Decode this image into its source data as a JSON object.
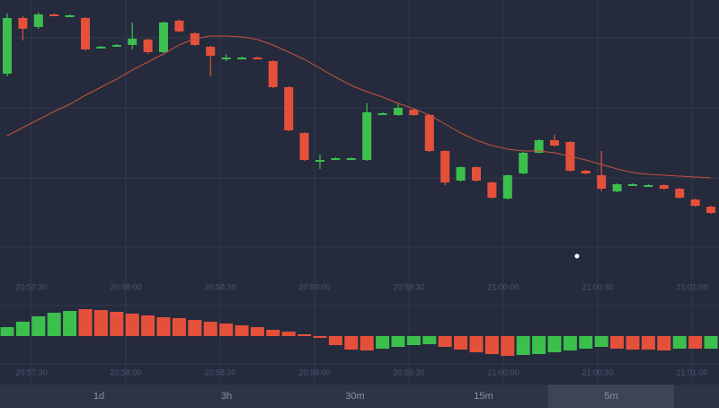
{
  "chart_data": [
    {
      "type": "candlestick",
      "time_labels": [
        "20:57:30",
        "20:58:00",
        "20:58:30",
        "20:59:00",
        "20:59:30",
        "21:00:00",
        "21:00:30",
        "21:01:00"
      ],
      "open": [
        218,
        280,
        270,
        284,
        283,
        280,
        248,
        250,
        250,
        256,
        242,
        277,
        263,
        248,
        236,
        236,
        236,
        232,
        203,
        152,
        122,
        124,
        124,
        122,
        174,
        172,
        178,
        172,
        132,
        99,
        114,
        97,
        79,
        107,
        130,
        144,
        142,
        110,
        105,
        87,
        95,
        94,
        94,
        90,
        78,
        70
      ],
      "high": [
        285,
        282,
        286,
        285,
        284,
        281,
        249,
        251,
        275,
        257,
        276,
        278,
        264,
        249,
        240,
        237,
        237,
        233,
        204,
        153,
        128,
        125,
        125,
        185,
        175,
        185,
        179,
        173,
        133,
        115,
        115,
        98,
        106,
        131,
        145,
        150,
        143,
        111,
        132,
        96,
        96,
        95,
        95,
        91,
        79,
        71
      ],
      "low": [
        215,
        255,
        268,
        282,
        282,
        244,
        247,
        249,
        245,
        240,
        241,
        264,
        249,
        215,
        232,
        235,
        234,
        202,
        154,
        121,
        112,
        123,
        123,
        121,
        173,
        171,
        171,
        131,
        94,
        98,
        98,
        79,
        78,
        106,
        129,
        137,
        109,
        106,
        87,
        86,
        94,
        93,
        89,
        79,
        70,
        62
      ],
      "close": [
        280,
        268,
        284,
        283,
        283,
        245,
        248,
        250,
        257,
        242,
        275,
        265,
        250,
        238,
        236,
        236,
        235,
        203,
        155,
        122,
        122,
        124,
        124,
        175,
        174,
        180,
        172,
        132,
        97,
        114,
        99,
        80,
        105,
        130,
        144,
        138,
        110,
        107,
        90,
        95,
        95,
        94,
        90,
        80,
        71,
        63
      ],
      "ma": [
        149,
        158,
        167,
        176,
        184,
        194,
        203,
        212,
        222,
        231,
        240,
        250,
        257,
        260,
        260,
        259,
        256,
        250,
        242,
        234,
        224,
        214,
        205,
        198,
        192,
        185,
        179,
        172,
        162,
        152,
        144,
        138,
        134,
        132,
        132,
        130,
        126,
        122,
        117,
        112,
        108,
        106,
        105,
        104,
        103,
        102
      ],
      "up_color": "#3cbf4d",
      "down_color": "#e5503a",
      "ma_color": "#c9503f",
      "ylim": [
        0,
        300
      ]
    },
    {
      "type": "histogram",
      "time_labels": [
        "20:57:30",
        "20:58:00",
        "20:58:30",
        "20:59:00",
        "20:59:30",
        "21:00:00",
        "21:00:30",
        "21:01:00"
      ],
      "values": [
        10,
        16,
        22,
        26,
        28,
        30,
        29,
        27,
        25,
        23,
        21,
        20,
        18,
        16,
        14,
        12,
        10,
        7,
        5,
        2,
        -2,
        -10,
        -15,
        -16,
        -14,
        -12,
        -10,
        -9,
        -12,
        -15,
        -18,
        -20,
        -22,
        -21,
        -20,
        -18,
        -16,
        -14,
        -12,
        -14,
        -15,
        -15,
        -16,
        -14,
        -14,
        -14
      ],
      "colors": [
        "#3cbf4d",
        "#3cbf4d",
        "#3cbf4d",
        "#3cbf4d",
        "#3cbf4d",
        "#e5503a",
        "#e5503a",
        "#e5503a",
        "#e5503a",
        "#e5503a",
        "#e5503a",
        "#e5503a",
        "#e5503a",
        "#e5503a",
        "#e5503a",
        "#e5503a",
        "#e5503a",
        "#e5503a",
        "#e5503a",
        "#e5503a",
        "#e5503a",
        "#e5503a",
        "#e5503a",
        "#e5503a",
        "#3cbf4d",
        "#3cbf4d",
        "#3cbf4d",
        "#3cbf4d",
        "#e5503a",
        "#e5503a",
        "#e5503a",
        "#e5503a",
        "#e5503a",
        "#3cbf4d",
        "#3cbf4d",
        "#3cbf4d",
        "#3cbf4d",
        "#3cbf4d",
        "#3cbf4d",
        "#e5503a",
        "#e5503a",
        "#e5503a",
        "#e5503a",
        "#3cbf4d",
        "#e5503a",
        "#3cbf4d"
      ],
      "ylim": [
        -35,
        35
      ]
    }
  ],
  "timeframes": {
    "options": [
      "1d",
      "3h",
      "30m",
      "15m",
      "5m"
    ],
    "active_index": 4
  }
}
